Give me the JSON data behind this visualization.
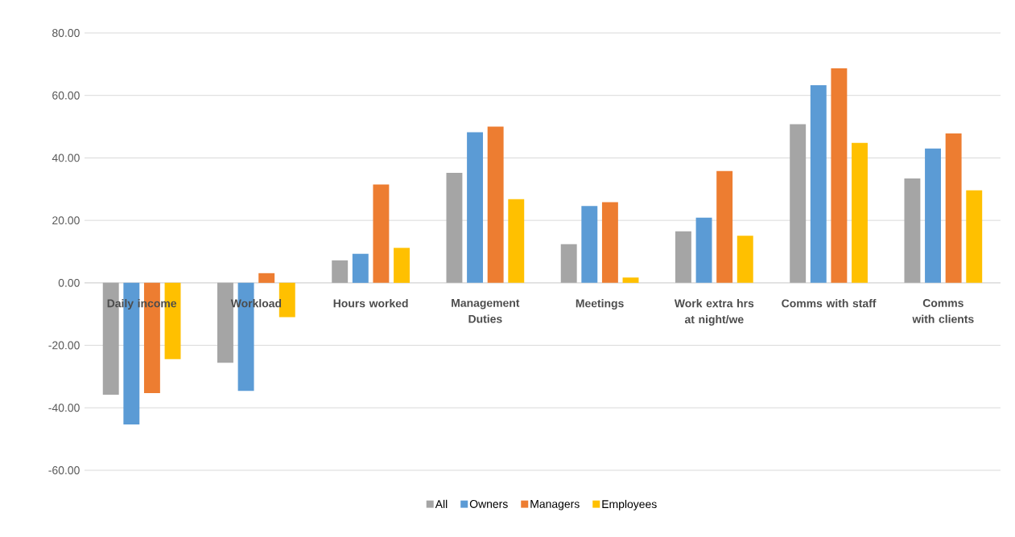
{
  "chart_data": {
    "type": "bar",
    "categories": [
      "Daily income",
      "Workload",
      "Hours worked",
      "Management Duties",
      "Meetings",
      "Work extra hrs at night/we",
      "Comms with staff",
      "Comms with clients"
    ],
    "series": [
      {
        "name": "All",
        "color": "#a5a5a5",
        "values": [
          -35.8,
          -25.6,
          7.2,
          35.2,
          12.4,
          16.5,
          50.8,
          33.4
        ]
      },
      {
        "name": "Owners",
        "color": "#5b9bd5",
        "values": [
          -45.3,
          -34.6,
          9.3,
          48.2,
          24.6,
          20.9,
          63.3,
          43.0
        ]
      },
      {
        "name": "Managers",
        "color": "#ed7d31",
        "values": [
          -35.3,
          3.1,
          31.5,
          50.0,
          25.8,
          35.8,
          68.7,
          47.8
        ]
      },
      {
        "name": "Employees",
        "color": "#ffc000",
        "values": [
          -24.4,
          -11.0,
          11.2,
          26.8,
          1.7,
          15.1,
          44.8,
          29.6
        ]
      }
    ],
    "ylim": [
      -60,
      80
    ],
    "yticks": [
      {
        "value": -60,
        "label": "-60.00"
      },
      {
        "value": -40,
        "label": "-40.00"
      },
      {
        "value": -20,
        "label": "-20.00"
      },
      {
        "value": 0,
        "label": "0.00"
      },
      {
        "value": 20,
        "label": "20.00"
      },
      {
        "value": 40,
        "label": "40.00"
      },
      {
        "value": 60,
        "label": "60.00"
      },
      {
        "value": 80,
        "label": "80.00"
      }
    ],
    "grid": "y",
    "legend": "bottom"
  }
}
